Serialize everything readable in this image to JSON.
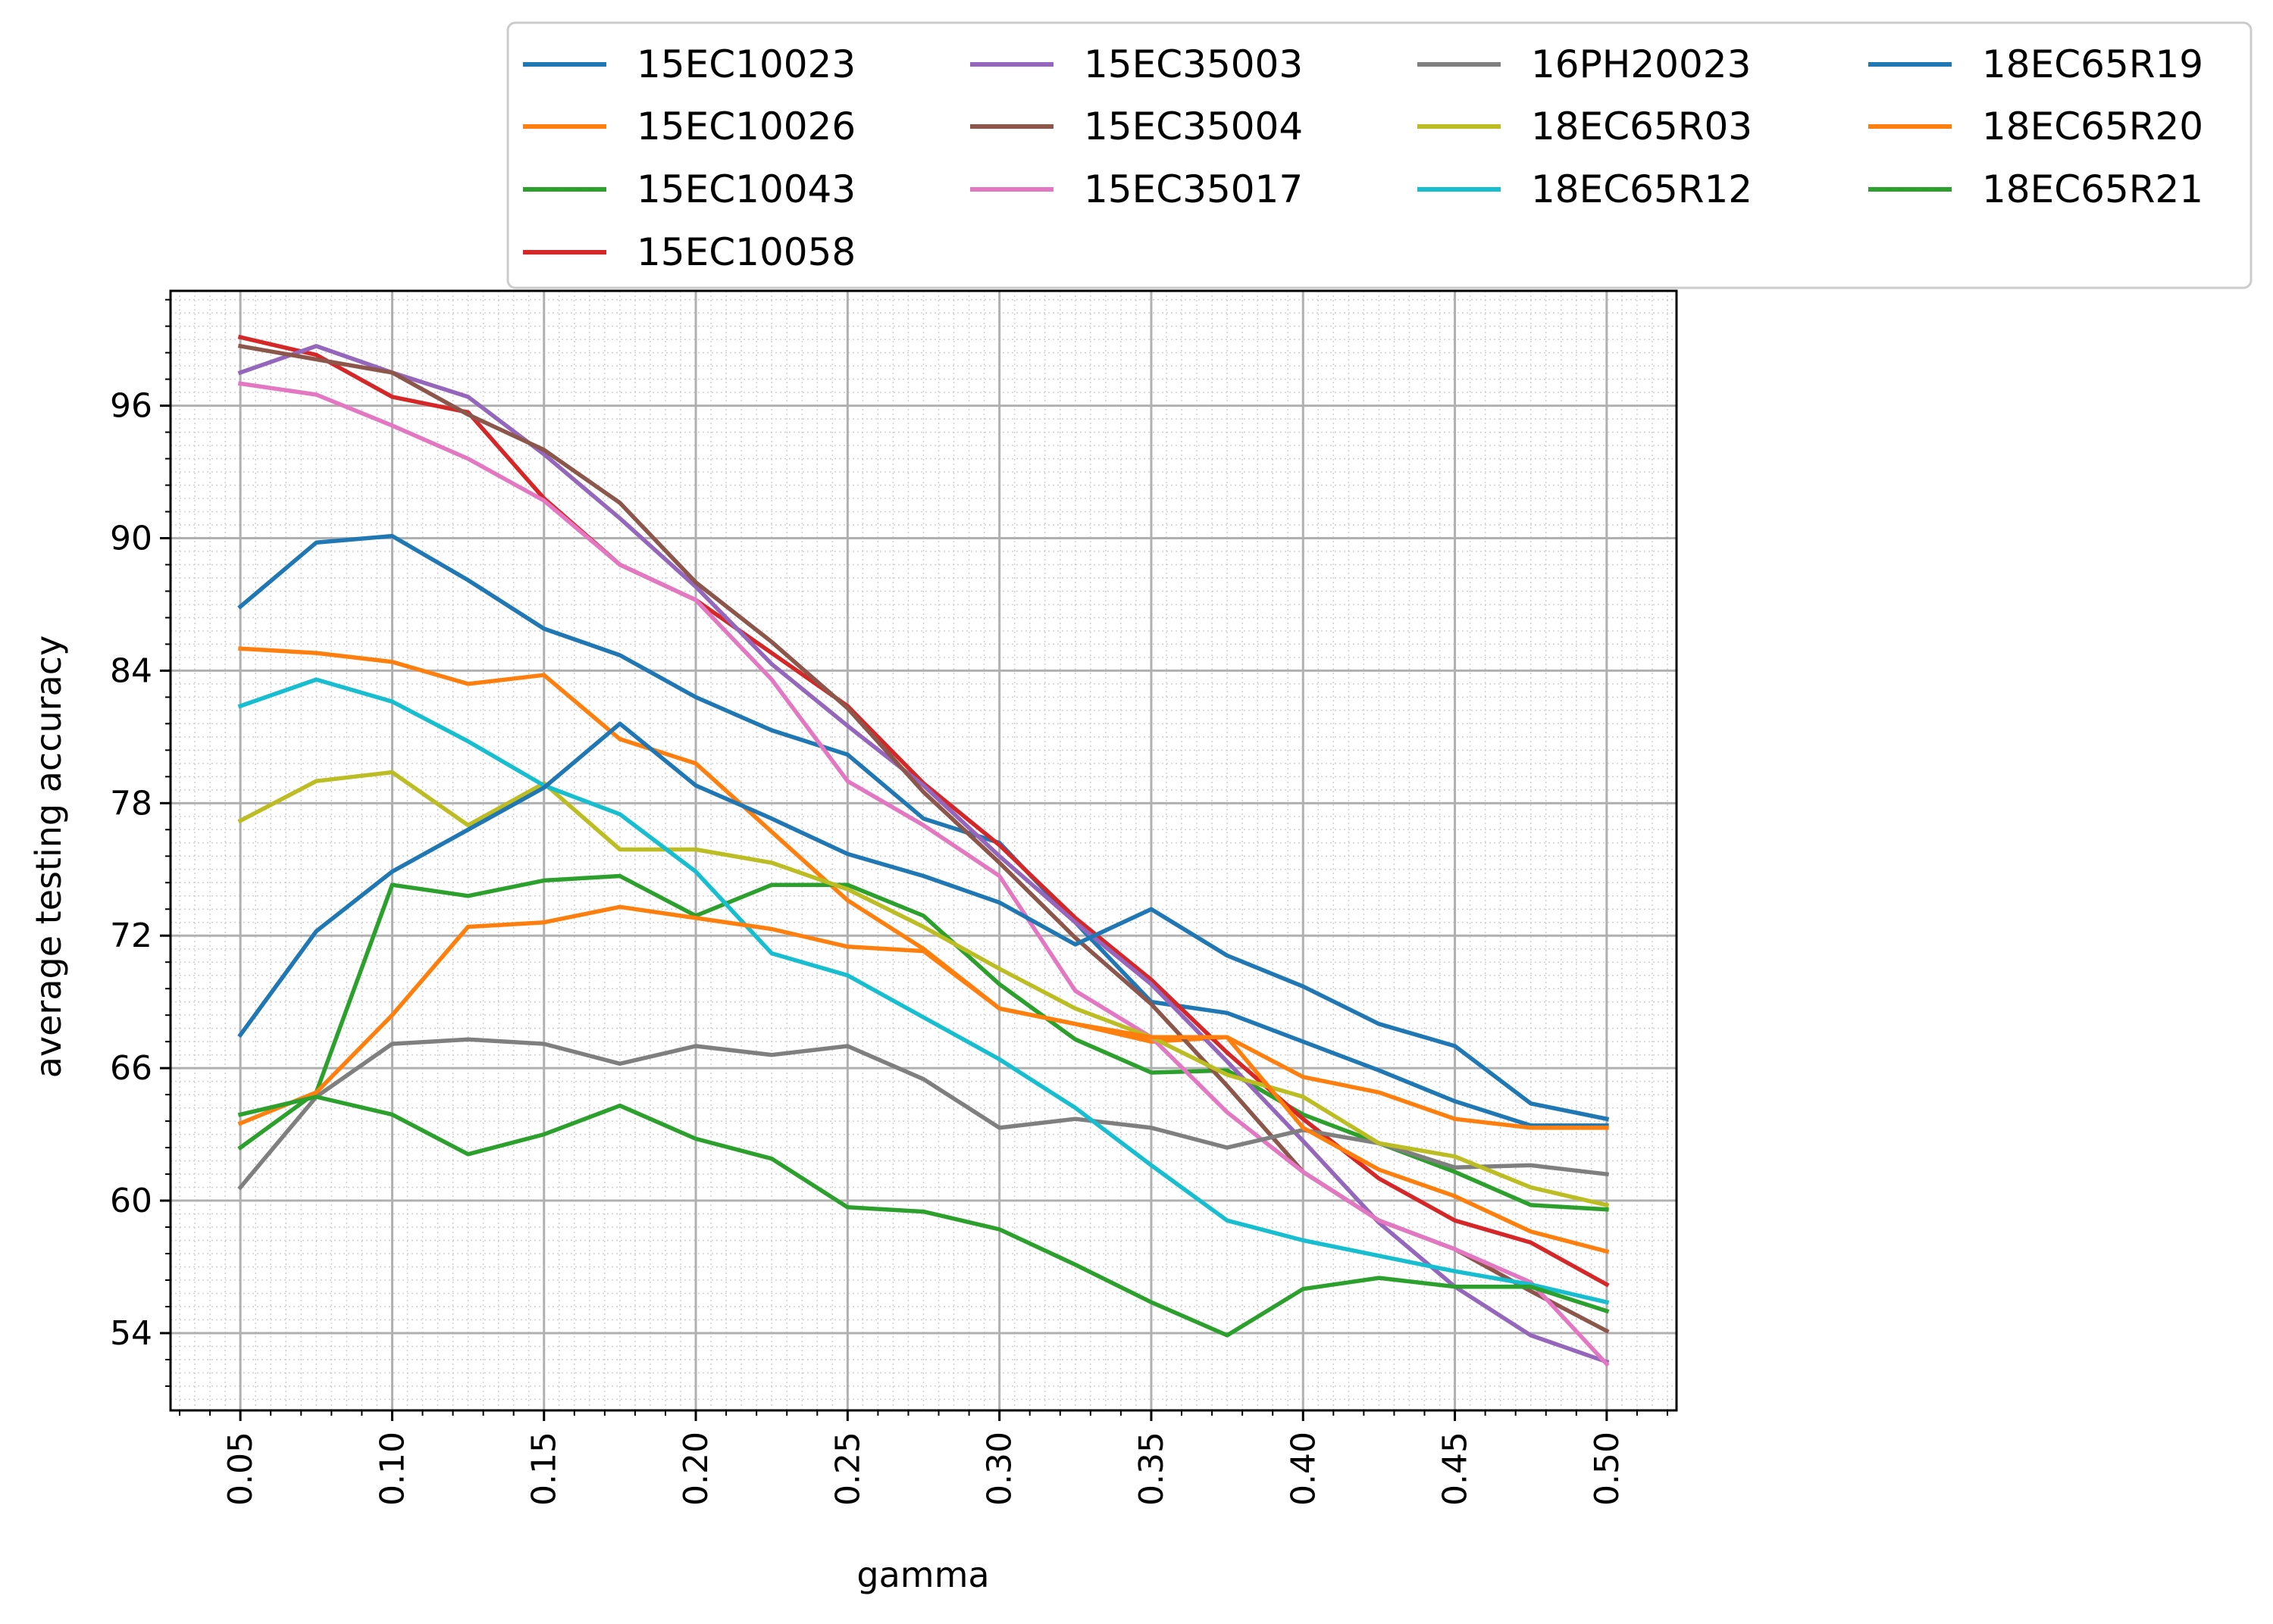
{
  "chart_data": {
    "type": "line",
    "xlabel": "gamma",
    "ylabel": "average testing accuracy",
    "xlim": [
      0.027,
      0.523
    ],
    "ylim": [
      50.5,
      101.2
    ],
    "xticks": [
      0.05,
      0.1,
      0.15,
      0.2,
      0.25,
      0.3,
      0.35,
      0.4,
      0.45,
      0.5
    ],
    "xtick_labels": [
      "0.05",
      "0.10",
      "0.15",
      "0.20",
      "0.25",
      "0.30",
      "0.35",
      "0.40",
      "0.45",
      "0.50"
    ],
    "yticks": [
      54,
      60,
      66,
      72,
      78,
      84,
      90,
      96
    ],
    "ytick_labels": [
      "54",
      "60",
      "66",
      "72",
      "78",
      "84",
      "90",
      "96"
    ],
    "grid": true,
    "minor_grid": true,
    "legend_placement": "above plot, 4 columns",
    "x": [
      0.05,
      0.075,
      0.1,
      0.125,
      0.15,
      0.175,
      0.2,
      0.225,
      0.25,
      0.275,
      0.3,
      0.325,
      0.35,
      0.375,
      0.4,
      0.425,
      0.45,
      0.475,
      0.5
    ],
    "series": [
      {
        "name": "15EC10023",
        "color": "#1f77b4",
        "values": [
          86.9,
          89.8,
          90.1,
          88.1,
          85.9,
          84.7,
          82.8,
          81.3,
          80.2,
          77.3,
          76.2,
          72.6,
          69.0,
          68.5,
          67.2,
          65.9,
          64.5,
          63.4,
          63.4
        ]
      },
      {
        "name": "15EC10026",
        "color": "#ff7f0e",
        "values": [
          85.0,
          84.8,
          84.4,
          83.4,
          83.8,
          80.9,
          79.8,
          76.7,
          73.6,
          71.4,
          68.7,
          68.0,
          67.2,
          67.4,
          65.6,
          64.9,
          63.7,
          63.3,
          63.3
        ]
      },
      {
        "name": "15EC10043",
        "color": "#2ca02c",
        "values": [
          62.4,
          64.9,
          74.3,
          73.8,
          74.5,
          74.7,
          72.9,
          74.3,
          74.3,
          72.9,
          69.8,
          67.3,
          65.8,
          65.9,
          63.9,
          62.6,
          61.3,
          59.8,
          59.6
        ]
      },
      {
        "name": "15EC10058",
        "color": "#d62728",
        "values": [
          99.1,
          98.3,
          96.4,
          95.7,
          91.8,
          88.8,
          87.2,
          84.8,
          82.4,
          78.9,
          76.1,
          72.8,
          70.0,
          66.7,
          63.7,
          61.0,
          59.1,
          58.1,
          56.2
        ]
      },
      {
        "name": "15EC35003",
        "color": "#9467bd",
        "values": [
          97.5,
          98.7,
          97.5,
          96.4,
          93.8,
          90.9,
          87.8,
          84.3,
          81.5,
          78.8,
          75.6,
          72.6,
          69.8,
          66.3,
          62.7,
          59.0,
          56.1,
          53.9,
          52.7
        ]
      },
      {
        "name": "15EC35004",
        "color": "#8c564b",
        "values": [
          98.7,
          98.1,
          97.5,
          95.6,
          94.0,
          91.6,
          88.0,
          85.3,
          82.3,
          78.5,
          75.3,
          71.9,
          68.9,
          65.2,
          61.3,
          59.1,
          57.8,
          55.9,
          54.1
        ]
      },
      {
        "name": "15EC35017",
        "color": "#e377c2",
        "values": [
          97.0,
          96.5,
          95.1,
          93.6,
          91.7,
          88.8,
          87.2,
          83.6,
          79.0,
          77.0,
          74.7,
          69.5,
          67.4,
          64.0,
          61.3,
          59.1,
          57.8,
          56.3,
          52.6
        ]
      },
      {
        "name": "16PH20023",
        "color": "#7f7f7f",
        "values": [
          60.6,
          64.7,
          67.1,
          67.3,
          67.1,
          66.2,
          67.0,
          66.6,
          67.0,
          65.5,
          63.3,
          63.7,
          63.3,
          62.4,
          63.2,
          62.6,
          61.5,
          61.6,
          61.2
        ]
      },
      {
        "name": "18EC65R03",
        "color": "#bcbd22",
        "values": [
          77.2,
          79.0,
          79.4,
          77.0,
          78.9,
          75.9,
          75.9,
          75.3,
          74.1,
          72.4,
          70.5,
          68.7,
          67.4,
          65.7,
          64.7,
          62.6,
          62.0,
          60.6,
          59.8
        ]
      },
      {
        "name": "18EC65R12",
        "color": "#17becf",
        "values": [
          82.4,
          83.6,
          82.6,
          80.8,
          78.8,
          77.5,
          74.9,
          71.2,
          70.2,
          68.3,
          66.4,
          64.2,
          61.6,
          59.1,
          58.2,
          57.5,
          56.8,
          56.2,
          55.4
        ]
      },
      {
        "name": "18EC65R19",
        "color": "#1f77b4",
        "values": [
          67.5,
          72.2,
          74.9,
          76.8,
          78.7,
          81.6,
          78.8,
          77.3,
          75.7,
          74.7,
          73.5,
          71.6,
          73.2,
          71.1,
          69.7,
          68.0,
          67.0,
          64.4,
          63.7
        ]
      },
      {
        "name": "18EC65R20",
        "color": "#ff7f0e",
        "values": [
          63.5,
          64.9,
          68.4,
          72.4,
          72.6,
          73.3,
          72.8,
          72.3,
          71.5,
          71.3,
          68.7,
          68.0,
          67.4,
          67.4,
          63.3,
          61.4,
          60.2,
          58.6,
          57.7
        ]
      },
      {
        "name": "18EC65R21",
        "color": "#2ca02c",
        "values": [
          63.9,
          64.7,
          63.9,
          62.1,
          63.0,
          64.3,
          62.8,
          61.9,
          59.7,
          59.5,
          58.7,
          57.1,
          55.4,
          53.9,
          56.0,
          56.5,
          56.1,
          56.1,
          55.0
        ]
      }
    ]
  }
}
